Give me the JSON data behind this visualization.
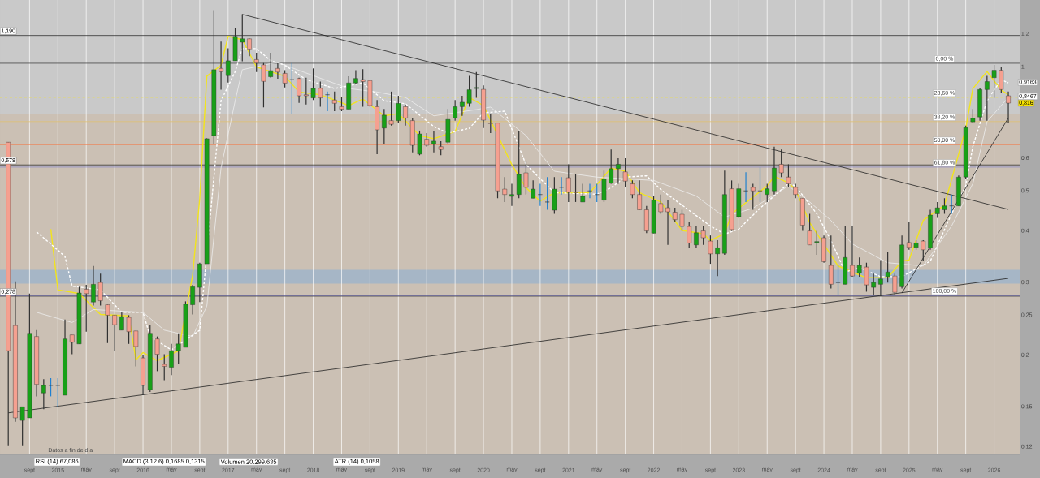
{
  "chart_data": {
    "type": "candlestick",
    "log": "y",
    "grid": "x",
    "x": [
      "2014-06",
      "2014-07",
      "2014-08",
      "2014-09",
      "2014-10",
      "2014-11",
      "2014-12",
      "2015-01",
      "2015-02",
      "2015-03",
      "2015-04",
      "2015-05",
      "2015-06",
      "2015-07",
      "2015-08",
      "2015-09",
      "2015-10",
      "2015-11",
      "2015-12",
      "2016-01",
      "2016-02",
      "2016-03",
      "2016-04",
      "2016-05",
      "2016-06",
      "2016-07",
      "2016-08",
      "2016-09",
      "2016-10",
      "2016-11",
      "2016-12",
      "2017-01",
      "2017-02",
      "2017-03",
      "2017-04",
      "2017-05",
      "2017-06",
      "2017-07",
      "2017-08",
      "2017-09",
      "2017-10",
      "2017-11",
      "2017-12",
      "2018-01",
      "2018-02",
      "2018-03",
      "2018-04",
      "2018-05",
      "2018-06",
      "2018-07",
      "2018-08",
      "2018-09",
      "2018-10",
      "2018-11",
      "2018-12",
      "2019-01",
      "2019-02",
      "2019-03",
      "2019-04",
      "2019-05",
      "2019-06",
      "2019-07",
      "2019-08",
      "2019-09",
      "2019-10",
      "2019-11",
      "2019-12",
      "2020-01",
      "2020-02",
      "2020-03",
      "2020-04",
      "2020-05",
      "2020-06",
      "2020-07",
      "2020-08",
      "2020-09",
      "2020-10",
      "2020-11",
      "2020-12",
      "2021-01",
      "2021-02",
      "2021-03",
      "2021-04",
      "2021-05",
      "2021-06",
      "2021-07",
      "2021-08",
      "2021-09",
      "2021-10",
      "2021-11",
      "2021-12",
      "2022-01",
      "2022-02",
      "2022-03",
      "2022-04",
      "2022-05",
      "2022-06",
      "2022-07",
      "2022-08",
      "2022-09",
      "2022-10",
      "2022-11",
      "2022-12",
      "2023-01",
      "2023-02",
      "2023-03",
      "2023-04",
      "2023-05",
      "2023-06",
      "2023-07",
      "2023-08",
      "2023-09",
      "2023-10",
      "2023-11",
      "2023-12",
      "2024-01",
      "2024-02",
      "2024-03",
      "2024-04",
      "2024-05",
      "2024-06",
      "2024-07",
      "2024-08",
      "2024-09",
      "2024-10",
      "2024-11",
      "2024-12",
      "2025-01",
      "2025-02",
      "2025-03",
      "2025-04",
      "2025-05",
      "2025-06",
      "2025-07",
      "2025-08",
      "2025-09",
      "2025-10",
      "2025-11",
      "2025-12",
      "2026-01",
      "2026-02",
      "2026-03"
    ],
    "ohlc": [
      [
        0.656,
        0.656,
        0.121,
        0.205
      ],
      [
        0.236,
        0.302,
        0.138,
        0.141
      ],
      [
        0.139,
        0.15,
        0.121,
        0.15
      ],
      [
        0.141,
        0.282,
        0.141,
        0.226
      ],
      [
        0.222,
        0.23,
        0.159,
        0.17
      ],
      [
        0.162,
        0.175,
        0.148,
        0.169
      ],
      [
        0.169,
        0.176,
        0.159,
        0.169
      ],
      [
        0.169,
        0.176,
        0.15,
        0.169
      ],
      [
        0.16,
        0.244,
        0.16,
        0.219
      ],
      [
        0.224,
        0.224,
        0.201,
        0.215
      ],
      [
        0.213,
        0.293,
        0.213,
        0.283
      ],
      [
        0.289,
        0.296,
        0.228,
        0.282
      ],
      [
        0.269,
        0.329,
        0.264,
        0.297
      ],
      [
        0.3,
        0.315,
        0.264,
        0.271
      ],
      [
        0.265,
        0.265,
        0.214,
        0.25
      ],
      [
        0.25,
        0.25,
        0.205,
        0.237
      ],
      [
        0.23,
        0.254,
        0.23,
        0.248
      ],
      [
        0.247,
        0.25,
        0.213,
        0.228
      ],
      [
        0.229,
        0.229,
        0.188,
        0.21
      ],
      [
        0.197,
        0.2,
        0.16,
        0.169
      ],
      [
        0.165,
        0.237,
        0.163,
        0.226
      ],
      [
        0.219,
        0.222,
        0.183,
        0.201
      ],
      [
        0.19,
        0.201,
        0.174,
        0.188
      ],
      [
        0.187,
        0.213,
        0.179,
        0.205
      ],
      [
        0.205,
        0.226,
        0.19,
        0.213
      ],
      [
        0.209,
        0.27,
        0.209,
        0.266
      ],
      [
        0.265,
        0.296,
        0.251,
        0.293
      ],
      [
        0.292,
        0.335,
        0.269,
        0.333
      ],
      [
        0.333,
        0.67,
        0.333,
        0.669
      ],
      [
        0.681,
        1.37,
        0.65,
        0.983
      ],
      [
        0.99,
        1.15,
        0.879,
        0.972
      ],
      [
        0.951,
        1.108,
        0.915,
        1.033
      ],
      [
        1.033,
        1.24,
        1.033,
        1.184
      ],
      [
        1.146,
        1.34,
        1.03,
        1.168
      ],
      [
        1.168,
        1.17,
        1.06,
        1.103
      ],
      [
        1.04,
        1.08,
        0.97,
        1.02
      ],
      [
        1.01,
        1.02,
        0.797,
        0.921
      ],
      [
        0.945,
        1.08,
        0.94,
        0.978
      ],
      [
        0.99,
        1.02,
        0.935,
        0.97
      ],
      [
        0.963,
        0.98,
        0.89,
        0.912
      ],
      [
        0.93,
        1.02,
        0.77,
        0.93
      ],
      [
        0.936,
        0.94,
        0.817,
        0.85
      ],
      [
        0.855,
        0.94,
        0.81,
        0.85
      ],
      [
        0.84,
        0.99,
        0.83,
        0.885
      ],
      [
        0.886,
        0.92,
        0.8,
        0.84
      ],
      [
        0.855,
        0.87,
        0.78,
        0.855
      ],
      [
        0.83,
        0.87,
        0.78,
        0.815
      ],
      [
        0.8,
        0.845,
        0.78,
        0.789
      ],
      [
        0.789,
        0.947,
        0.789,
        0.913
      ],
      [
        0.913,
        0.98,
        0.91,
        0.936
      ],
      [
        0.93,
        0.986,
        0.8,
        0.92
      ],
      [
        0.925,
        0.93,
        0.8,
        0.805
      ],
      [
        0.8,
        0.83,
        0.614,
        0.703
      ],
      [
        0.71,
        0.79,
        0.65,
        0.763
      ],
      [
        0.74,
        0.87,
        0.72,
        0.725
      ],
      [
        0.74,
        0.85,
        0.73,
        0.815
      ],
      [
        0.8,
        0.81,
        0.72,
        0.751
      ],
      [
        0.74,
        0.75,
        0.62,
        0.645
      ],
      [
        0.614,
        0.7,
        0.61,
        0.687
      ],
      [
        0.667,
        0.69,
        0.64,
        0.645
      ],
      [
        0.65,
        0.7,
        0.62,
        0.66
      ],
      [
        0.64,
        0.66,
        0.61,
        0.63
      ],
      [
        0.656,
        0.79,
        0.65,
        0.745
      ],
      [
        0.751,
        0.83,
        0.74,
        0.8
      ],
      [
        0.8,
        0.85,
        0.76,
        0.82
      ],
      [
        0.815,
        0.95,
        0.8,
        0.879
      ],
      [
        0.885,
        0.97,
        0.84,
        0.89
      ],
      [
        0.881,
        0.9,
        0.71,
        0.742
      ],
      [
        0.73,
        0.77,
        0.69,
        0.728
      ],
      [
        0.73,
        0.73,
        0.48,
        0.5
      ],
      [
        0.505,
        0.54,
        0.47,
        0.49
      ],
      [
        0.485,
        0.52,
        0.46,
        0.49
      ],
      [
        0.49,
        0.7,
        0.48,
        0.548
      ],
      [
        0.553,
        0.59,
        0.49,
        0.51
      ],
      [
        0.48,
        0.53,
        0.48,
        0.505
      ],
      [
        0.49,
        0.52,
        0.46,
        0.49
      ],
      [
        0.47,
        0.54,
        0.45,
        0.47
      ],
      [
        0.449,
        0.54,
        0.44,
        0.505
      ],
      [
        0.51,
        0.54,
        0.49,
        0.51
      ],
      [
        0.538,
        0.58,
        0.47,
        0.496
      ],
      [
        0.497,
        0.55,
        0.47,
        0.495
      ],
      [
        0.47,
        0.52,
        0.47,
        0.485
      ],
      [
        0.5,
        0.52,
        0.48,
        0.5
      ],
      [
        0.49,
        0.52,
        0.47,
        0.49
      ],
      [
        0.475,
        0.56,
        0.47,
        0.534
      ],
      [
        0.522,
        0.63,
        0.52,
        0.566
      ],
      [
        0.566,
        0.6,
        0.52,
        0.58
      ],
      [
        0.556,
        0.6,
        0.51,
        0.528
      ],
      [
        0.52,
        0.53,
        0.48,
        0.49
      ],
      [
        0.49,
        0.53,
        0.45,
        0.45
      ],
      [
        0.45,
        0.46,
        0.395,
        0.4
      ],
      [
        0.395,
        0.485,
        0.395,
        0.475
      ],
      [
        0.466,
        0.49,
        0.44,
        0.445
      ],
      [
        0.455,
        0.475,
        0.37,
        0.445
      ],
      [
        0.444,
        0.455,
        0.42,
        0.426
      ],
      [
        0.439,
        0.45,
        0.4,
        0.41
      ],
      [
        0.41,
        0.42,
        0.363,
        0.374
      ],
      [
        0.37,
        0.41,
        0.363,
        0.396
      ],
      [
        0.4,
        0.41,
        0.37,
        0.385
      ],
      [
        0.378,
        0.39,
        0.333,
        0.352
      ],
      [
        0.352,
        0.38,
        0.311,
        0.364
      ],
      [
        0.353,
        0.56,
        0.35,
        0.49
      ],
      [
        0.506,
        0.53,
        0.4,
        0.403
      ],
      [
        0.433,
        0.52,
        0.43,
        0.506
      ],
      [
        0.5,
        0.555,
        0.47,
        0.5
      ],
      [
        0.51,
        0.52,
        0.45,
        0.5
      ],
      [
        0.5,
        0.57,
        0.47,
        0.5
      ],
      [
        0.49,
        0.52,
        0.47,
        0.506
      ],
      [
        0.5,
        0.64,
        0.49,
        0.568
      ],
      [
        0.58,
        0.63,
        0.54,
        0.553
      ],
      [
        0.54,
        0.58,
        0.51,
        0.52
      ],
      [
        0.51,
        0.52,
        0.48,
        0.49
      ],
      [
        0.48,
        0.48,
        0.4,
        0.413
      ],
      [
        0.4,
        0.44,
        0.37,
        0.37
      ],
      [
        0.375,
        0.4,
        0.35,
        0.377
      ],
      [
        0.385,
        0.39,
        0.335,
        0.337
      ],
      [
        0.33,
        0.39,
        0.29,
        0.297
      ],
      [
        0.3,
        0.33,
        0.28,
        0.3
      ],
      [
        0.297,
        0.41,
        0.297,
        0.345
      ],
      [
        0.33,
        0.41,
        0.31,
        0.311
      ],
      [
        0.316,
        0.345,
        0.31,
        0.33
      ],
      [
        0.327,
        0.335,
        0.285,
        0.296
      ],
      [
        0.292,
        0.315,
        0.28,
        0.3
      ],
      [
        0.297,
        0.34,
        0.278,
        0.306
      ],
      [
        0.31,
        0.355,
        0.3,
        0.318
      ],
      [
        0.311,
        0.315,
        0.28,
        0.284
      ],
      [
        0.293,
        0.39,
        0.29,
        0.37
      ],
      [
        0.375,
        0.42,
        0.36,
        0.365
      ],
      [
        0.365,
        0.38,
        0.36,
        0.374
      ],
      [
        0.378,
        0.38,
        0.339,
        0.36
      ],
      [
        0.364,
        0.45,
        0.36,
        0.437
      ],
      [
        0.44,
        0.47,
        0.43,
        0.455
      ],
      [
        0.45,
        0.48,
        0.44,
        0.46
      ],
      [
        0.46,
        0.49,
        0.44,
        0.46
      ],
      [
        0.46,
        0.545,
        0.46,
        0.54
      ],
      [
        0.54,
        0.72,
        0.535,
        0.712
      ],
      [
        0.735,
        0.79,
        0.73,
        0.75
      ],
      [
        0.755,
        0.885,
        0.74,
        0.88
      ],
      [
        0.88,
        0.95,
        0.74,
        0.92
      ],
      [
        0.94,
        1.01,
        0.84,
        0.98
      ],
      [
        0.98,
        1.0,
        0.865,
        0.88
      ],
      [
        0.85,
        0.87,
        0.73,
        0.816
      ]
    ],
    "series": [
      {
        "type": "line",
        "color": "#f2e41c",
        "line_style": "solid",
        "x": [
          "2014-12",
          "2015-01",
          "2015-04",
          "2015-07",
          "2015-11",
          "2015-12",
          "2016-01",
          "2016-03",
          "2016-06",
          "2016-08",
          "2016-09",
          "2016-10",
          "2016-12",
          "2017-01",
          "2017-03",
          "2017-05",
          "2017-09",
          "2017-11",
          "2018-02",
          "2018-06",
          "2018-08",
          "2018-11",
          "2019-01",
          "2019-04",
          "2019-06",
          "2019-09",
          "2019-11",
          "2020-01",
          "2020-05",
          "2020-07",
          "2020-09",
          "2020-11",
          "2021-04",
          "2021-07",
          "2021-09",
          "2021-11",
          "2022-02",
          "2022-05",
          "2022-08",
          "2022-09",
          "2022-11",
          "2022-12",
          "2023-05",
          "2023-06",
          "2023-08",
          "2023-09",
          "2023-11",
          "2024-03",
          "2024-05",
          "2024-07",
          "2024-10",
          "2024-12",
          "2025-01",
          "2025-03",
          "2025-06",
          "2025-09",
          "2025-10",
          "2025-12",
          "2026-02",
          "2026-03"
        ],
        "values": [
          0.404,
          0.288,
          0.282,
          0.251,
          0.249,
          0.195,
          0.203,
          0.194,
          0.205,
          0.313,
          0.48,
          0.948,
          1.008,
          1.184,
          1.163,
          0.998,
          0.948,
          0.868,
          0.855,
          0.805,
          0.835,
          0.76,
          0.77,
          0.681,
          0.669,
          0.696,
          0.842,
          0.805,
          0.579,
          0.509,
          0.472,
          0.495,
          0.495,
          0.568,
          0.558,
          0.495,
          0.47,
          0.401,
          0.394,
          0.379,
          0.394,
          0.44,
          0.514,
          0.542,
          0.523,
          0.504,
          0.419,
          0.329,
          0.318,
          0.308,
          0.308,
          0.338,
          0.34,
          0.424,
          0.462,
          0.709,
          0.885,
          0.973,
          0.877,
          0.855
        ]
      },
      {
        "type": "line",
        "color": "#ffffff",
        "line_style": "dashed",
        "x": [
          "2014-10",
          "2015-02",
          "2015-03",
          "2015-07",
          "2015-10",
          "2016-01",
          "2016-02",
          "2016-05",
          "2016-09",
          "2016-12",
          "2017-02",
          "2017-03",
          "2017-05",
          "2017-07",
          "2017-09",
          "2017-12",
          "2018-04",
          "2018-08",
          "2018-11",
          "2019-02",
          "2019-06",
          "2019-08",
          "2019-11",
          "2020-01",
          "2020-04",
          "2020-07",
          "2020-11",
          "2021-05",
          "2021-07",
          "2021-09",
          "2021-12",
          "2022-02",
          "2022-09",
          "2022-11",
          "2023-01",
          "2023-04",
          "2023-08",
          "2023-09",
          "2023-12",
          "2024-02",
          "2024-04",
          "2024-06",
          "2024-09",
          "2024-12",
          "2025-04",
          "2025-07",
          "2025-09",
          "2025-10",
          "2025-12",
          "2026-02",
          "2026-03"
        ],
        "values": [
          0.398,
          0.347,
          0.294,
          0.288,
          0.254,
          0.254,
          0.222,
          0.206,
          0.23,
          0.827,
          0.973,
          1.106,
          1.106,
          1.034,
          1.008,
          0.93,
          0.885,
          0.913,
          0.827,
          0.813,
          0.716,
          0.69,
          0.709,
          0.773,
          0.78,
          0.579,
          0.495,
          0.491,
          0.509,
          0.54,
          0.544,
          0.504,
          0.411,
          0.393,
          0.404,
          0.454,
          0.521,
          0.514,
          0.44,
          0.379,
          0.318,
          0.326,
          0.31,
          0.31,
          0.338,
          0.44,
          0.514,
          0.641,
          0.827,
          0.93,
          0.913
        ]
      },
      {
        "type": "line",
        "color": "#eeeeee",
        "line_style": "solid",
        "x": [
          "2014-10",
          "2015-03",
          "2015-06",
          "2016-01",
          "2016-04",
          "2016-08",
          "2016-10",
          "2016-12",
          "2017-02",
          "2017-03",
          "2017-07",
          "2017-08",
          "2017-12",
          "2018-06",
          "2018-10",
          "2019-02",
          "2019-06",
          "2019-12",
          "2020-02",
          "2020-07",
          "2020-11",
          "2021-05",
          "2022-01",
          "2022-07",
          "2022-11",
          "2023-03",
          "2023-08",
          "2023-11",
          "2024-02",
          "2024-05",
          "2024-10",
          "2025-03",
          "2025-07",
          "2025-10",
          "2025-12",
          "2026-03"
        ],
        "values": [
          0.254,
          0.24,
          0.258,
          0.254,
          0.23,
          0.222,
          0.263,
          0.568,
          0.827,
          0.983,
          1.017,
          1.023,
          0.965,
          0.885,
          0.868,
          0.842,
          0.76,
          0.787,
          0.798,
          0.681,
          0.558,
          0.54,
          0.53,
          0.486,
          0.432,
          0.454,
          0.514,
          0.47,
          0.424,
          0.372,
          0.335,
          0.329,
          0.411,
          0.521,
          0.736,
          0.842
        ]
      },
      {
        "type": "line",
        "color": "#222222",
        "line_style": "solid",
        "x": [
          "2017-03",
          "2026-03"
        ],
        "values": [
          1.338,
          0.451
        ]
      },
      {
        "type": "line",
        "color": "#222222",
        "line_style": "solid",
        "x": [
          "2014-06",
          "2026-03"
        ],
        "values": [
          0.145,
          0.307
        ]
      },
      {
        "type": "line",
        "color": "#222222",
        "line_style": "solid",
        "x": [
          "2024-12",
          "2026-03"
        ],
        "values": [
          0.283,
          0.751
        ]
      }
    ],
    "bands": [
      {
        "axis": "y",
        "from": 0.115,
        "to": 0.77,
        "color": "#cbc0b4"
      },
      {
        "axis": "y",
        "from": 0.77,
        "to": 1.45,
        "color": "#c9c9c9"
      },
      {
        "axis": "y",
        "from": 0.298,
        "to": 0.322,
        "color": "#a6b6c6"
      }
    ],
    "ref_lines": [
      {
        "axis": "y",
        "value": 1.19,
        "label": "1,190",
        "color": "#333333"
      },
      {
        "axis": "y",
        "value": 0.578,
        "label": "0,578",
        "color": "#333333"
      },
      {
        "axis": "y",
        "value": 0.278,
        "label": "0,278",
        "color": "#333333"
      },
      {
        "axis": "y",
        "value": 1.019,
        "color": "#444444"
      },
      {
        "axis": "y",
        "value": 0.842,
        "color": "#e8dc60",
        "line_style": "dashed"
      },
      {
        "axis": "y",
        "value": 0.736,
        "color": "#e0c070"
      },
      {
        "axis": "y",
        "value": 0.647,
        "color": "#f08050"
      },
      {
        "axis": "y",
        "value": 0.571,
        "color": "#8a8ac8"
      },
      {
        "axis": "y",
        "value": 0.279,
        "color": "#6060b0"
      }
    ],
    "annotations": [
      "Datos a fin de día",
      "RSI (14) 67,086",
      "MACD (3 12 6) 0,1685 0,1315",
      "Volumen 20.299.635",
      "ATR (14) 0,1058",
      {
        "text": "0,00 %",
        "x": "2025-06",
        "y": 1.019
      },
      {
        "text": "23,60 %",
        "x": "2025-06",
        "y": 0.842
      },
      {
        "text": "38,20 %",
        "x": "2025-06",
        "y": 0.736
      },
      {
        "text": "50,00 %",
        "x": "2025-06",
        "y": 0.647
      },
      {
        "text": "61,80 %",
        "x": "2025-06",
        "y": 0.571
      },
      {
        "text": "100,00 %",
        "x": "2025-06",
        "y": 0.279
      },
      {
        "text": "0,9163",
        "x": "2026-03",
        "y": 0.9163
      },
      {
        "text": "0,8467",
        "x": "2026-03",
        "y": 0.8467
      },
      {
        "text": "0,816",
        "x": "2026-03",
        "y": 0.816
      }
    ],
    "xlim": [
      "2014-04-26",
      "2026-04-19"
    ],
    "xticks": [
      {
        "value": "2014-09",
        "label": "sept"
      },
      {
        "value": "2015-01",
        "label": "2015"
      },
      {
        "value": "2015-05",
        "label": "may"
      },
      {
        "value": "2015-09",
        "label": "sept"
      },
      {
        "value": "2016-01",
        "label": "2016"
      },
      {
        "value": "2016-05",
        "label": "may"
      },
      {
        "value": "2016-09",
        "label": "sept"
      },
      {
        "value": "2017-01",
        "label": "2017"
      },
      {
        "value": "2017-05",
        "label": "may"
      },
      {
        "value": "2017-09",
        "label": "sept"
      },
      {
        "value": "2018-01",
        "label": "2018"
      },
      {
        "value": "2018-05",
        "label": "may"
      },
      {
        "value": "2018-09",
        "label": "sept"
      },
      {
        "value": "2019-01",
        "label": "2019"
      },
      {
        "value": "2019-05",
        "label": "may"
      },
      {
        "value": "2019-09",
        "label": "sept"
      },
      {
        "value": "2020-01",
        "label": "2020"
      },
      {
        "value": "2020-05",
        "label": "may"
      },
      {
        "value": "2020-09",
        "label": "sept"
      },
      {
        "value": "2021-01",
        "label": "2021"
      },
      {
        "value": "2021-05",
        "label": "may"
      },
      {
        "value": "2021-09",
        "label": "sept"
      },
      {
        "value": "2022-01",
        "label": "2022"
      },
      {
        "value": "2022-05",
        "label": "may"
      },
      {
        "value": "2022-09",
        "label": "sept"
      },
      {
        "value": "2023-01",
        "label": "2023"
      },
      {
        "value": "2023-05",
        "label": "may"
      },
      {
        "value": "2023-09",
        "label": "sept"
      },
      {
        "value": "2024-01",
        "label": "2024"
      },
      {
        "value": "2024-05",
        "label": "may"
      },
      {
        "value": "2024-09",
        "label": "sept"
      },
      {
        "value": "2025-01",
        "label": "2025"
      },
      {
        "value": "2025-05",
        "label": "may"
      },
      {
        "value": "2025-09",
        "label": "sept"
      },
      {
        "value": "2026-01",
        "label": "2026"
      }
    ],
    "ylim": [
      0.115,
      1.45
    ],
    "yticks": [
      {
        "value": 0.12,
        "label": "0,12"
      },
      {
        "value": 0.15,
        "label": "0,15"
      },
      {
        "value": 0.2,
        "label": "0,2"
      },
      {
        "value": 0.25,
        "label": "0,25"
      },
      {
        "value": 0.3,
        "label": "0,3"
      },
      {
        "value": 0.4,
        "label": "0,4"
      },
      {
        "value": 0.5,
        "label": "0,5"
      },
      {
        "value": 0.6,
        "label": "0,6"
      },
      1,
      {
        "value": 1.2,
        "label": "1,2"
      }
    ]
  }
}
